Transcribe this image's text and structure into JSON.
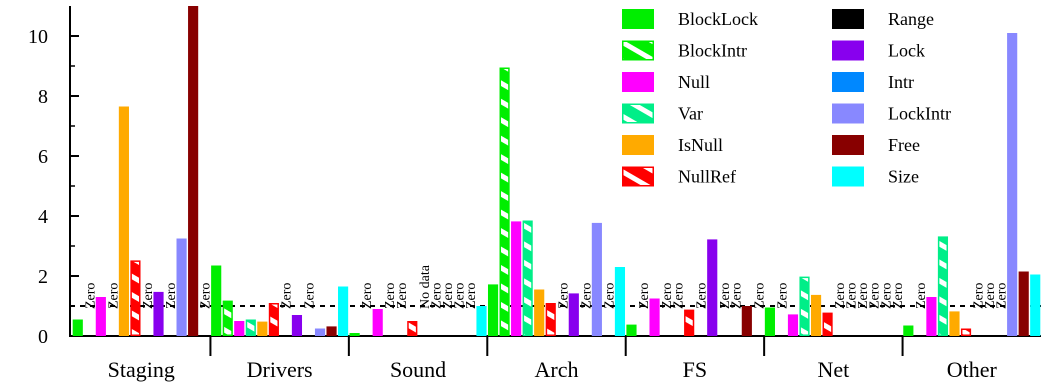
{
  "chart_data": {
    "type": "bar",
    "categories": [
      "Staging",
      "Drivers",
      "Sound",
      "Arch",
      "FS",
      "Net",
      "Other"
    ],
    "ylim": [
      0,
      11
    ],
    "yticks": [
      0,
      2,
      4,
      6,
      8,
      10
    ],
    "reference_line": 1,
    "grid": false,
    "legend_position": "top-right",
    "series": [
      {
        "name": "BlockLock",
        "color": "#00ee00",
        "hatched": false,
        "values": [
          0.55,
          2.35,
          0.1,
          1.72,
          0.38,
          0.95,
          0.35
        ]
      },
      {
        "name": "BlockIntr",
        "color": "#00ee00",
        "hatched": true,
        "values": [
          "Zero",
          1.18,
          "Zero",
          8.95,
          "Zero",
          "Zero",
          "Zero"
        ]
      },
      {
        "name": "Null",
        "color": "#ff00ff",
        "hatched": false,
        "values": [
          1.3,
          0.5,
          0.9,
          3.82,
          1.25,
          0.72,
          1.3
        ]
      },
      {
        "name": "Var",
        "color": "#00ee88",
        "hatched": true,
        "values": [
          "Zero",
          0.55,
          "Zero",
          3.85,
          "Zero",
          1.98,
          3.32
        ]
      },
      {
        "name": "IsNull",
        "color": "#ffaa00",
        "hatched": false,
        "values": [
          7.65,
          0.48,
          "Zero",
          1.55,
          "Zero",
          1.37,
          0.82
        ]
      },
      {
        "name": "NullRef",
        "color": "#ff0000",
        "hatched": true,
        "values": [
          2.52,
          1.1,
          0.5,
          1.1,
          0.88,
          0.78,
          0.25
        ]
      },
      {
        "name": "Range",
        "color": "#000000",
        "hatched": false,
        "values": [
          "Zero",
          "Zero",
          "No data",
          "Zero",
          "Zero",
          "Zero",
          "Zero"
        ]
      },
      {
        "name": "Lock",
        "color": "#8800ee",
        "hatched": false,
        "values": [
          1.47,
          0.7,
          "Zero",
          1.42,
          3.22,
          "Zero",
          "Zero"
        ]
      },
      {
        "name": "Intr",
        "color": "#0088ff",
        "hatched": false,
        "values": [
          "Zero",
          "Zero",
          "Zero",
          "Zero",
          "Zero",
          "Zero",
          "Zero"
        ]
      },
      {
        "name": "LockIntr",
        "color": "#8888ff",
        "hatched": false,
        "values": [
          3.25,
          0.25,
          "Zero",
          3.77,
          "Zero",
          "Zero",
          10.1
        ]
      },
      {
        "name": "Free",
        "color": "#880000",
        "hatched": false,
        "values": [
          11.0,
          0.32,
          "Zero",
          "Zero",
          1.0,
          "Zero",
          2.15
        ]
      },
      {
        "name": "Size",
        "color": "#00ffff",
        "hatched": false,
        "values": [
          "Zero",
          1.65,
          1.0,
          2.3,
          "Zero",
          "Zero",
          2.05
        ]
      }
    ]
  }
}
